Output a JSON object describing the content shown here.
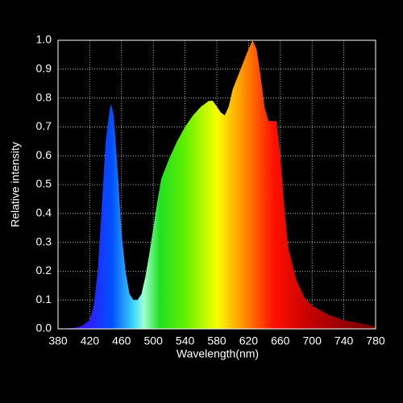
{
  "chart_data": {
    "type": "area",
    "xlabel": "Wavelength(nm)",
    "ylabel": "Relative intensity",
    "x": [
      380,
      400,
      410,
      420,
      425,
      430,
      435,
      440,
      445,
      447,
      450,
      455,
      460,
      465,
      470,
      475,
      480,
      485,
      490,
      495,
      500,
      505,
      510,
      520,
      530,
      540,
      550,
      560,
      570,
      575,
      580,
      585,
      590,
      595,
      600,
      610,
      620,
      625,
      630,
      635,
      640,
      645,
      650,
      655,
      660,
      665,
      670,
      680,
      690,
      700,
      720,
      740,
      760,
      780
    ],
    "values": [
      0,
      0.003,
      0.01,
      0.03,
      0.08,
      0.2,
      0.42,
      0.65,
      0.76,
      0.78,
      0.74,
      0.55,
      0.33,
      0.2,
      0.12,
      0.1,
      0.1,
      0.12,
      0.18,
      0.26,
      0.35,
      0.44,
      0.52,
      0.59,
      0.65,
      0.7,
      0.74,
      0.77,
      0.79,
      0.79,
      0.77,
      0.75,
      0.74,
      0.77,
      0.83,
      0.9,
      0.97,
      1.0,
      0.97,
      0.88,
      0.77,
      0.72,
      0.72,
      0.72,
      0.6,
      0.42,
      0.28,
      0.17,
      0.11,
      0.08,
      0.05,
      0.03,
      0.02,
      0.008
    ],
    "xlim": [
      380,
      780
    ],
    "ylim": [
      0,
      1
    ],
    "xticks": [
      380,
      420,
      460,
      500,
      540,
      580,
      620,
      660,
      700,
      740,
      780
    ],
    "yticks": [
      {
        "value": 0,
        "label": "0.0"
      },
      0.1,
      0.2,
      0.3,
      0.4,
      0.5,
      0.6,
      0.7,
      0.8,
      0.9,
      {
        "value": 1,
        "label": "1.0"
      }
    ],
    "grid": true
  }
}
